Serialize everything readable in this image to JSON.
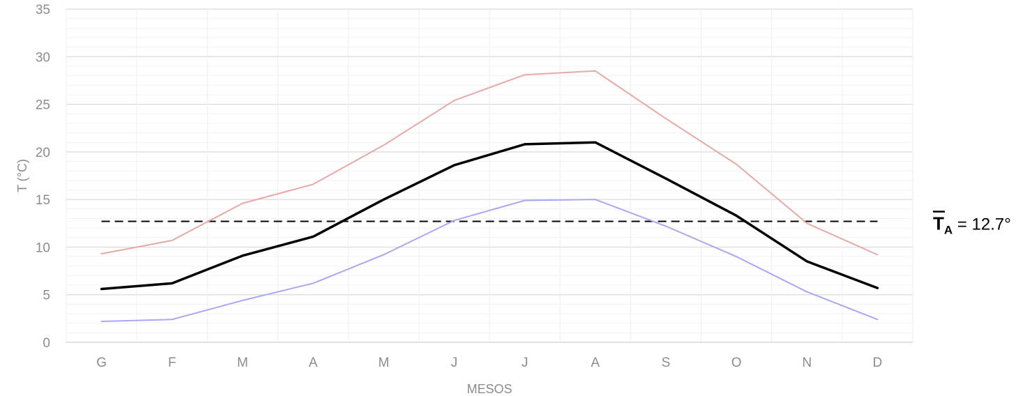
{
  "chart_data": {
    "type": "line",
    "xlabel": "MESOS",
    "ylabel": "T (°C)",
    "ylim": [
      0,
      35
    ],
    "yticks": [
      0,
      5,
      10,
      15,
      20,
      25,
      30,
      35
    ],
    "grid": true,
    "legend": "none",
    "categories": [
      "G",
      "F",
      "M",
      "A",
      "M",
      "J",
      "J",
      "A",
      "S",
      "O",
      "N",
      "D"
    ],
    "series": [
      {
        "color": "#e8a8a8",
        "values": [
          9.3,
          10.7,
          14.6,
          16.6,
          20.7,
          25.4,
          28.1,
          28.5,
          23.5,
          18.7,
          12.5,
          9.2
        ]
      },
      {
        "color": "#000000",
        "values": [
          5.6,
          6.2,
          9.1,
          11.1,
          15.0,
          18.6,
          20.8,
          21.0,
          17.2,
          13.3,
          8.5,
          5.7
        ]
      },
      {
        "color": "#a8a8f0",
        "values": [
          2.2,
          2.4,
          4.4,
          6.2,
          9.2,
          12.8,
          14.9,
          15.0,
          12.2,
          9.0,
          5.3,
          2.4
        ]
      }
    ],
    "reference_line": {
      "value": 12.7,
      "style": "dashed",
      "color": "#000000"
    },
    "annotation": {
      "symbol": "T",
      "subscript": "A",
      "text": " = 12.7°"
    }
  }
}
